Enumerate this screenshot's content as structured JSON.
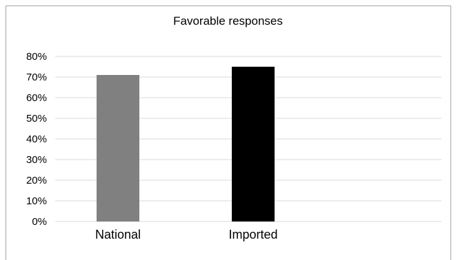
{
  "chart_data": {
    "type": "bar",
    "title": "Favorable responses",
    "categories": [
      "National",
      "Imported"
    ],
    "values": [
      71,
      75
    ],
    "value_unit": "%",
    "bar_colors": [
      "#808080",
      "#000000"
    ],
    "ylim": [
      0,
      80
    ],
    "yticks": [
      "0%",
      "10%",
      "20%",
      "30%",
      "40%",
      "50%",
      "60%",
      "70%",
      "80%"
    ],
    "xlabel": "",
    "ylabel": "",
    "grid": true,
    "legend": "none",
    "grid_color": "#d9d9d9"
  }
}
